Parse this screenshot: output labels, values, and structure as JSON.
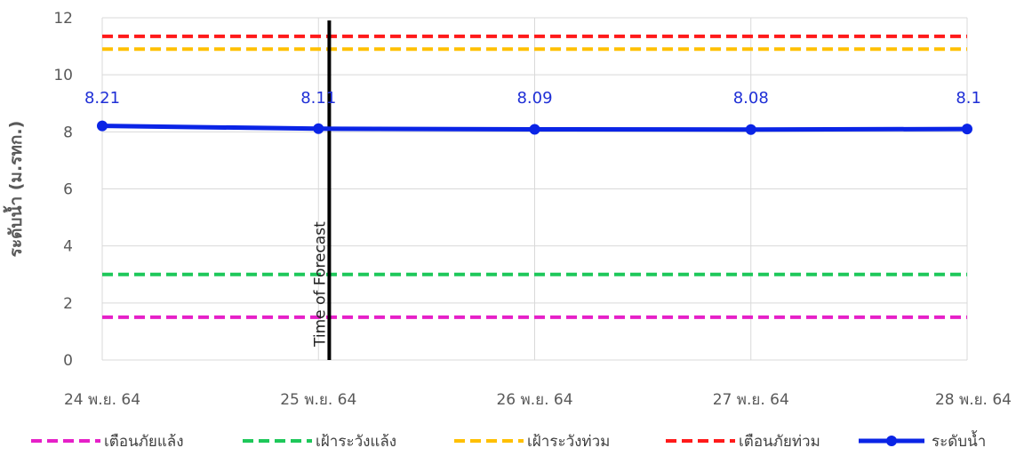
{
  "chart_data": {
    "type": "line",
    "categories": [
      "24 พ.ย. 64",
      "25 พ.ย. 64",
      "26 พ.ย. 64",
      "27 พ.ย. 64",
      "28 พ.ย. 64"
    ],
    "ylabel": "ระดับน้ำ (ม.รทก.)",
    "ylim": [
      0,
      12
    ],
    "yticks": [
      0,
      2,
      4,
      6,
      8,
      10,
      12
    ],
    "grid": true,
    "legend_position": "bottom",
    "threshold_lines": [
      {
        "name": "เตือนภัยแล้ง",
        "value": 1.5,
        "color": "#e620c8",
        "style": "dashed"
      },
      {
        "name": "เฝ้าระวังแล้ง",
        "value": 3.0,
        "color": "#1ec85a",
        "style": "dashed"
      },
      {
        "name": "เฝ้าระวังท่วม",
        "value": 10.9,
        "color": "#ffc000",
        "style": "dashed"
      },
      {
        "name": "เตือนภัยท่วม",
        "value": 11.35,
        "color": "#ff1a1a",
        "style": "dashed"
      }
    ],
    "series": [
      {
        "name": "ระดับน้ำ",
        "values": [
          8.21,
          8.11,
          8.09,
          8.08,
          8.1
        ],
        "labels": [
          "8.21",
          "8.11",
          "8.09",
          "8.08",
          "8.1"
        ],
        "color": "#0a24e6"
      }
    ],
    "vertical_marker": {
      "label": "Time of Forecast",
      "at_category": 1.05,
      "color": "#000000"
    }
  }
}
